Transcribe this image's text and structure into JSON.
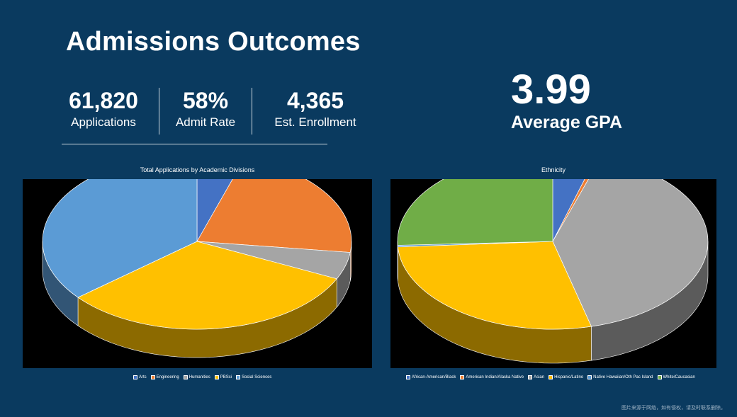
{
  "header": {
    "title": "Admissions Outcomes"
  },
  "stats": [
    {
      "value": "61,820",
      "label": "Applications"
    },
    {
      "value": "58%",
      "label": "Admit Rate"
    },
    {
      "value": "4,365",
      "label": "Est. Enrollment"
    }
  ],
  "gpa": {
    "value": "3.99",
    "label": "Average GPA"
  },
  "watermark": "图片来源于网络，如有侵权，请及时联系删除。",
  "chart_data": [
    {
      "type": "pie",
      "title": "Total Applications by Academic Divisions",
      "categories": [
        "Arts",
        "Engineering",
        "Humanities",
        "PBSci",
        "Social Sciences"
      ],
      "values": [
        5,
        22,
        5,
        32,
        36
      ],
      "colors": [
        "#4472c4",
        "#ed7d31",
        "#a5a5a5",
        "#ffc000",
        "#5b9bd5"
      ],
      "legend_position": "bottom",
      "style": "3d"
    },
    {
      "type": "pie",
      "title": "Ethnicity",
      "categories": [
        "African-American/Black",
        "American Indian/Alaska Native",
        "Asian",
        "Hispanic/Latino",
        "Native Hawaiian/Oth Pac Island",
        "White/Caucasian"
      ],
      "values": [
        4.5,
        0.5,
        41,
        28,
        0.3,
        25.7
      ],
      "colors": [
        "#4472c4",
        "#ed7d31",
        "#a5a5a5",
        "#ffc000",
        "#5b9bd5",
        "#70ad47"
      ],
      "legend_position": "bottom",
      "style": "3d"
    }
  ]
}
